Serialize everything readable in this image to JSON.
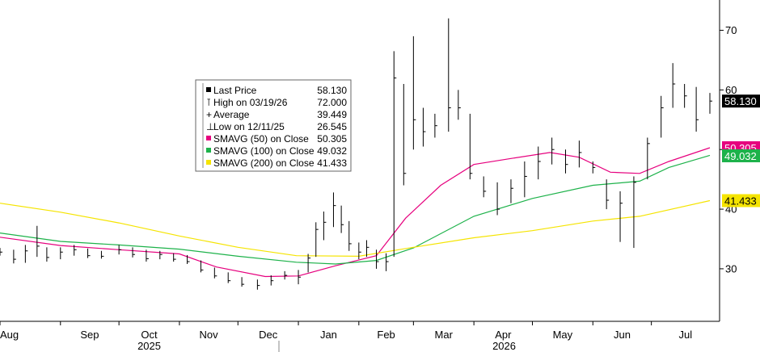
{
  "chart_data": {
    "type": "line",
    "subtype": "ohlc-bars-with-moving-averages",
    "x_axis": {
      "months": [
        "Aug",
        "Sep",
        "Oct",
        "Nov",
        "Dec",
        "Jan",
        "Feb",
        "Mar",
        "Apr",
        "May",
        "Jun",
        "Jul"
      ],
      "years": [
        "2025",
        "2026"
      ],
      "range": [
        "2025-08-01",
        "2026-07-31"
      ]
    },
    "y_axis": {
      "ticks": [
        30,
        40,
        50,
        60,
        70
      ],
      "tick_labels": [
        "30",
        "40",
        "50",
        "60",
        "70"
      ],
      "range": [
        22,
        74
      ],
      "position": "right"
    },
    "grid": false,
    "legend": {
      "placement": "top-center",
      "entries": [
        {
          "marker": "■",
          "label": "Last Price",
          "value": "58.130",
          "color": "#000000"
        },
        {
          "marker": "⊺",
          "label": "High on 03/19/26",
          "value": "72.000",
          "color": "#777777"
        },
        {
          "marker": "+",
          "label": "Average",
          "value": "39.449",
          "color": "#777777"
        },
        {
          "marker": "⊥",
          "label": "Low on 12/11/25",
          "value": "26.545",
          "color": "#777777"
        },
        {
          "marker": "■",
          "label": "SMAVG (50)  on Close",
          "value": "50.305",
          "color": "#e6007e"
        },
        {
          "marker": "■",
          "label": "SMAVG (100)  on Close",
          "value": "49.032",
          "color": "#1db24a"
        },
        {
          "marker": "■",
          "label": "SMAVG (200)  on Close",
          "value": "41.433",
          "color": "#f5e400"
        }
      ]
    },
    "value_labels": [
      {
        "text": "58.130",
        "value": 58.13,
        "bg": "#000000",
        "fg": "#ffffff"
      },
      {
        "text": "50.305",
        "value": 50.305,
        "bg": "#e6007e",
        "fg": "#ffffff"
      },
      {
        "text": "49.032",
        "value": 49.032,
        "bg": "#1db24a",
        "fg": "#ffffff"
      },
      {
        "text": "41.433",
        "value": 41.433,
        "bg": "#f5e400",
        "fg": "#000000"
      }
    ],
    "series": [
      {
        "name": "Last Price",
        "kind": "hlc-bars",
        "color": "#000000",
        "points": [
          [
            "2025-08-01",
            33.5,
            32.2,
            32.8
          ],
          [
            "2025-08-08",
            33.2,
            30.9,
            31.6
          ],
          [
            "2025-08-14",
            34.0,
            31.0,
            33.0
          ],
          [
            "2025-08-20",
            37.2,
            32.0,
            33.8
          ],
          [
            "2025-08-25",
            33.6,
            31.2,
            31.9
          ],
          [
            "2025-09-01",
            33.6,
            31.6,
            32.8
          ],
          [
            "2025-09-08",
            34.0,
            32.2,
            33.2
          ],
          [
            "2025-09-15",
            33.4,
            31.8,
            32.2
          ],
          [
            "2025-09-22",
            33.0,
            31.7,
            32.1
          ],
          [
            "2025-10-01",
            34.0,
            32.4,
            33.2
          ],
          [
            "2025-10-08",
            33.6,
            31.9,
            32.4
          ],
          [
            "2025-10-15",
            33.2,
            31.2,
            31.7
          ],
          [
            "2025-10-22",
            33.0,
            31.6,
            32.4
          ],
          [
            "2025-10-29",
            32.6,
            31.2,
            31.6
          ],
          [
            "2025-11-05",
            32.3,
            30.8,
            31.2
          ],
          [
            "2025-11-12",
            31.4,
            29.4,
            29.8
          ],
          [
            "2025-11-19",
            30.2,
            28.4,
            28.8
          ],
          [
            "2025-11-26",
            29.4,
            27.6,
            28.0
          ],
          [
            "2025-12-03",
            28.6,
            27.0,
            27.4
          ],
          [
            "2025-12-11",
            28.2,
            26.5,
            27.2
          ],
          [
            "2025-12-18",
            28.9,
            27.2,
            28.0
          ],
          [
            "2025-12-25",
            29.6,
            28.2,
            28.9
          ],
          [
            "2026-01-01",
            29.8,
            27.4,
            28.6
          ],
          [
            "2026-01-06",
            32.5,
            29.4,
            31.8
          ],
          [
            "2026-01-10",
            37.8,
            32.0,
            36.6
          ],
          [
            "2026-01-14",
            39.6,
            34.8,
            37.8
          ],
          [
            "2026-01-19",
            42.8,
            37.0,
            40.6
          ],
          [
            "2026-01-23",
            40.6,
            36.0,
            37.4
          ],
          [
            "2026-01-27",
            38.0,
            33.0,
            34.2
          ],
          [
            "2026-02-01",
            34.4,
            31.6,
            32.8
          ],
          [
            "2026-02-05",
            34.8,
            32.0,
            33.6
          ],
          [
            "2026-02-10",
            33.2,
            30.0,
            31.2
          ],
          [
            "2026-02-15",
            32.6,
            29.6,
            31.2
          ],
          [
            "2026-02-19",
            66.5,
            32.0,
            62.0
          ],
          [
            "2026-02-24",
            61.0,
            44.0,
            46.0
          ],
          [
            "2026-03-01",
            69.0,
            50.0,
            55.0
          ],
          [
            "2026-03-06",
            57.0,
            50.5,
            53.0
          ],
          [
            "2026-03-12",
            56.0,
            52.0,
            54.0
          ],
          [
            "2026-03-19",
            72.0,
            53.0,
            57.0
          ],
          [
            "2026-03-24",
            60.0,
            55.0,
            57.0
          ],
          [
            "2026-03-30",
            56.0,
            45.0,
            46.0
          ],
          [
            "2026-04-06",
            45.5,
            42.0,
            43.0
          ],
          [
            "2026-04-13",
            44.5,
            39.0,
            40.0
          ],
          [
            "2026-04-20",
            45.0,
            41.0,
            43.5
          ],
          [
            "2026-04-27",
            48.0,
            42.0,
            45.5
          ],
          [
            "2026-05-04",
            50.5,
            45.0,
            48.0
          ],
          [
            "2026-05-11",
            52.0,
            47.5,
            50.0
          ],
          [
            "2026-05-18",
            50.0,
            46.0,
            47.5
          ],
          [
            "2026-05-25",
            51.5,
            47.0,
            49.5
          ],
          [
            "2026-06-01",
            48.0,
            46.0,
            47.0
          ],
          [
            "2026-06-08",
            45.0,
            40.0,
            41.5
          ],
          [
            "2026-06-15",
            43.0,
            34.5,
            41.0
          ],
          [
            "2026-06-22",
            45.5,
            33.5,
            44.5
          ],
          [
            "2026-06-29",
            52.0,
            45.0,
            51.0
          ],
          [
            "2026-07-06",
            59.0,
            52.0,
            57.0
          ],
          [
            "2026-07-12",
            64.5,
            57.0,
            61.0
          ],
          [
            "2026-07-18",
            61.0,
            57.0,
            59.0
          ],
          [
            "2026-07-24",
            60.5,
            53.0,
            55.0
          ],
          [
            "2026-07-31",
            59.5,
            56.0,
            58.13
          ]
        ]
      },
      {
        "name": "SMAVG (50)  on Close",
        "kind": "line",
        "color": "#e6007e",
        "points": [
          [
            "2025-08-01",
            35.3
          ],
          [
            "2025-09-01",
            33.9
          ],
          [
            "2025-10-01",
            33.2
          ],
          [
            "2025-11-01",
            32.5
          ],
          [
            "2025-11-20",
            30.3
          ],
          [
            "2025-12-15",
            28.7
          ],
          [
            "2026-01-01",
            28.8
          ],
          [
            "2026-01-20",
            30.5
          ],
          [
            "2026-02-10",
            32.2
          ],
          [
            "2026-02-25",
            38.5
          ],
          [
            "2026-03-15",
            44.0
          ],
          [
            "2026-04-01",
            47.5
          ],
          [
            "2026-04-20",
            48.5
          ],
          [
            "2026-05-10",
            49.5
          ],
          [
            "2026-05-25",
            48.7
          ],
          [
            "2026-06-10",
            46.2
          ],
          [
            "2026-06-25",
            46.0
          ],
          [
            "2026-07-10",
            48.0
          ],
          [
            "2026-07-31",
            50.305
          ]
        ]
      },
      {
        "name": "SMAVG (100)  on Close",
        "kind": "line",
        "color": "#1db24a",
        "points": [
          [
            "2025-08-01",
            36.0
          ],
          [
            "2025-09-01",
            34.6
          ],
          [
            "2025-10-01",
            34.0
          ],
          [
            "2025-11-01",
            33.3
          ],
          [
            "2025-12-01",
            32.1
          ],
          [
            "2025-12-31",
            31.1
          ],
          [
            "2026-01-20",
            30.8
          ],
          [
            "2026-02-10",
            31.4
          ],
          [
            "2026-03-01",
            33.5
          ],
          [
            "2026-04-01",
            38.8
          ],
          [
            "2026-05-01",
            41.8
          ],
          [
            "2026-06-01",
            44.0
          ],
          [
            "2026-06-25",
            44.7
          ],
          [
            "2026-07-10",
            47.0
          ],
          [
            "2026-07-31",
            49.032
          ]
        ]
      },
      {
        "name": "SMAVG (200)  on Close",
        "kind": "line",
        "color": "#f5e400",
        "points": [
          [
            "2025-08-01",
            41.0
          ],
          [
            "2025-09-01",
            39.5
          ],
          [
            "2025-10-01",
            37.7
          ],
          [
            "2025-11-01",
            35.5
          ],
          [
            "2025-12-01",
            33.6
          ],
          [
            "2025-12-31",
            32.2
          ],
          [
            "2026-02-01",
            32.1
          ],
          [
            "2026-03-01",
            33.6
          ],
          [
            "2026-04-01",
            35.2
          ],
          [
            "2026-05-01",
            36.4
          ],
          [
            "2026-06-01",
            38.0
          ],
          [
            "2026-06-25",
            38.8
          ],
          [
            "2026-07-31",
            41.433
          ]
        ]
      }
    ]
  }
}
